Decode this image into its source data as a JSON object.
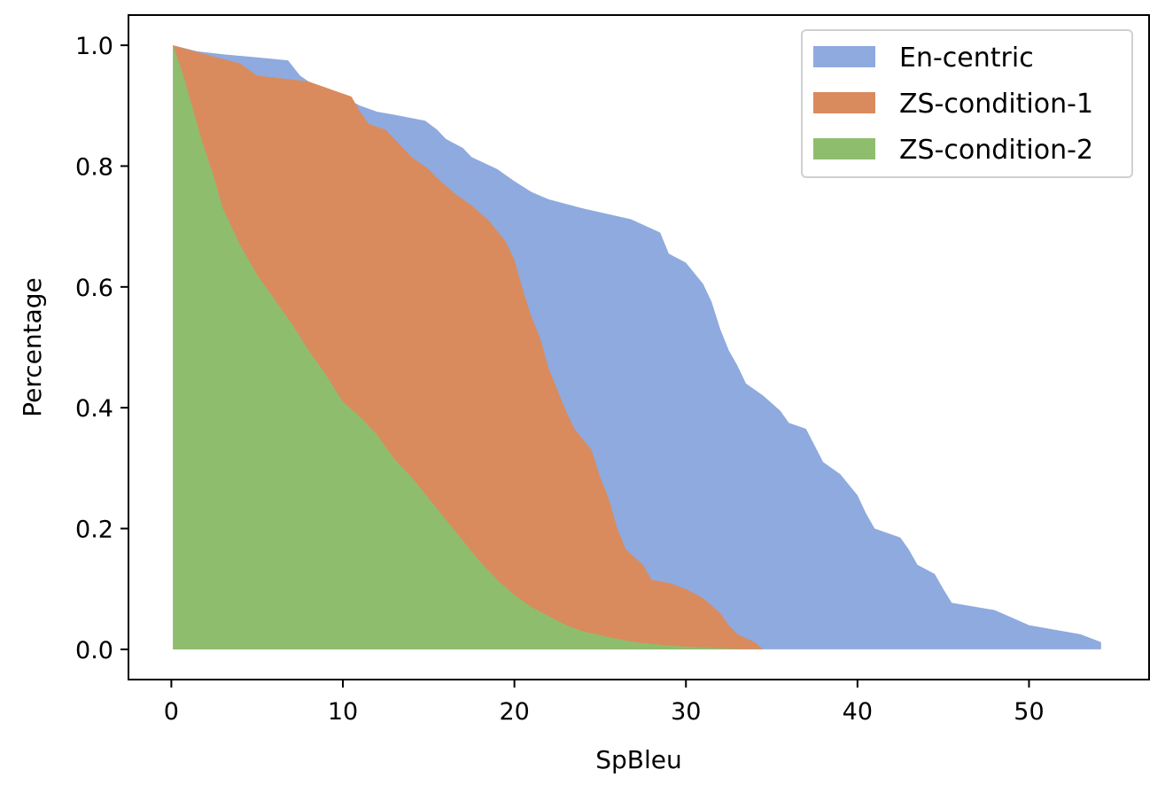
{
  "chart_data": {
    "type": "area",
    "xlabel": "SpBleu",
    "ylabel": "Percentage",
    "xlim": [
      -2.5,
      57.0
    ],
    "ylim": [
      -0.05,
      1.05
    ],
    "xticks": [
      0,
      10,
      20,
      30,
      40,
      50
    ],
    "yticks": [
      0.0,
      0.2,
      0.4,
      0.6,
      0.8,
      1.0
    ],
    "x_tick_labels": [
      "0",
      "10",
      "20",
      "30",
      "40",
      "50"
    ],
    "y_tick_labels": [
      "0.0",
      "0.2",
      "0.4",
      "0.6",
      "0.8",
      "1.0"
    ],
    "grid": false,
    "legend_position": "top-right",
    "series": [
      {
        "name": "En-centric",
        "color": "#8eaadf",
        "points": [
          [
            0.1,
            1.0
          ],
          [
            1.5,
            0.99
          ],
          [
            3,
            0.985
          ],
          [
            5,
            0.98
          ],
          [
            6.8,
            0.975
          ],
          [
            7.5,
            0.95
          ],
          [
            8.5,
            0.93
          ],
          [
            10,
            0.915
          ],
          [
            11,
            0.9
          ],
          [
            12,
            0.89
          ],
          [
            13,
            0.885
          ],
          [
            14.8,
            0.875
          ],
          [
            15.5,
            0.86
          ],
          [
            16,
            0.845
          ],
          [
            17,
            0.83
          ],
          [
            17.5,
            0.815
          ],
          [
            19,
            0.795
          ],
          [
            20,
            0.775
          ],
          [
            21,
            0.757
          ],
          [
            22,
            0.745
          ],
          [
            24,
            0.73
          ],
          [
            26.8,
            0.712
          ],
          [
            28.5,
            0.69
          ],
          [
            29,
            0.655
          ],
          [
            30,
            0.64
          ],
          [
            31,
            0.605
          ],
          [
            31.5,
            0.575
          ],
          [
            32,
            0.53
          ],
          [
            32.5,
            0.495
          ],
          [
            33,
            0.47
          ],
          [
            33.5,
            0.44
          ],
          [
            34.5,
            0.42
          ],
          [
            35.5,
            0.395
          ],
          [
            36,
            0.375
          ],
          [
            37,
            0.365
          ],
          [
            38,
            0.31
          ],
          [
            39,
            0.29
          ],
          [
            40,
            0.255
          ],
          [
            40.5,
            0.225
          ],
          [
            41,
            0.2
          ],
          [
            42.5,
            0.185
          ],
          [
            43,
            0.165
          ],
          [
            43.5,
            0.14
          ],
          [
            44.5,
            0.125
          ],
          [
            45,
            0.1
          ],
          [
            45.5,
            0.077
          ],
          [
            48,
            0.065
          ],
          [
            50,
            0.04
          ],
          [
            53,
            0.025
          ],
          [
            54.2,
            0.012
          ],
          [
            54.2,
            0.0
          ]
        ]
      },
      {
        "name": "ZS-condition-1",
        "color": "#d98b5e",
        "points": [
          [
            0.1,
            1.0
          ],
          [
            2,
            0.985
          ],
          [
            4,
            0.97
          ],
          [
            5,
            0.95
          ],
          [
            6.5,
            0.945
          ],
          [
            8,
            0.94
          ],
          [
            10.5,
            0.915
          ],
          [
            11,
            0.89
          ],
          [
            11.5,
            0.87
          ],
          [
            12.5,
            0.86
          ],
          [
            13.5,
            0.83
          ],
          [
            14,
            0.815
          ],
          [
            15,
            0.795
          ],
          [
            15.5,
            0.78
          ],
          [
            16.5,
            0.755
          ],
          [
            17.5,
            0.735
          ],
          [
            18.5,
            0.71
          ],
          [
            19.5,
            0.675
          ],
          [
            20,
            0.645
          ],
          [
            20.5,
            0.595
          ],
          [
            21,
            0.55
          ],
          [
            21.5,
            0.515
          ],
          [
            22,
            0.465
          ],
          [
            22.5,
            0.43
          ],
          [
            23,
            0.395
          ],
          [
            23.5,
            0.365
          ],
          [
            24.5,
            0.33
          ],
          [
            25,
            0.285
          ],
          [
            25.5,
            0.25
          ],
          [
            26,
            0.2
          ],
          [
            26.5,
            0.165
          ],
          [
            27.5,
            0.14
          ],
          [
            28,
            0.115
          ],
          [
            29,
            0.11
          ],
          [
            30,
            0.1
          ],
          [
            31,
            0.085
          ],
          [
            32,
            0.06
          ],
          [
            32.5,
            0.04
          ],
          [
            33,
            0.025
          ],
          [
            34,
            0.012
          ],
          [
            34.5,
            0.0
          ]
        ]
      },
      {
        "name": "ZS-condition-2",
        "color": "#8fbd6e",
        "points": [
          [
            0.1,
            1.0
          ],
          [
            0.7,
            0.95
          ],
          [
            1.2,
            0.9
          ],
          [
            1.8,
            0.84
          ],
          [
            2.5,
            0.78
          ],
          [
            3,
            0.73
          ],
          [
            4,
            0.67
          ],
          [
            5,
            0.62
          ],
          [
            6,
            0.58
          ],
          [
            7,
            0.54
          ],
          [
            8,
            0.495
          ],
          [
            9,
            0.455
          ],
          [
            10,
            0.41
          ],
          [
            11,
            0.385
          ],
          [
            12,
            0.355
          ],
          [
            13,
            0.315
          ],
          [
            14,
            0.285
          ],
          [
            15,
            0.25
          ],
          [
            16,
            0.215
          ],
          [
            17,
            0.18
          ],
          [
            18,
            0.145
          ],
          [
            19,
            0.115
          ],
          [
            20,
            0.09
          ],
          [
            21,
            0.07
          ],
          [
            22,
            0.055
          ],
          [
            23,
            0.04
          ],
          [
            24,
            0.03
          ],
          [
            25.5,
            0.02
          ],
          [
            27,
            0.012
          ],
          [
            29,
            0.006
          ],
          [
            31,
            0.003
          ],
          [
            33,
            0.001
          ],
          [
            33.5,
            0.0
          ]
        ]
      }
    ]
  }
}
